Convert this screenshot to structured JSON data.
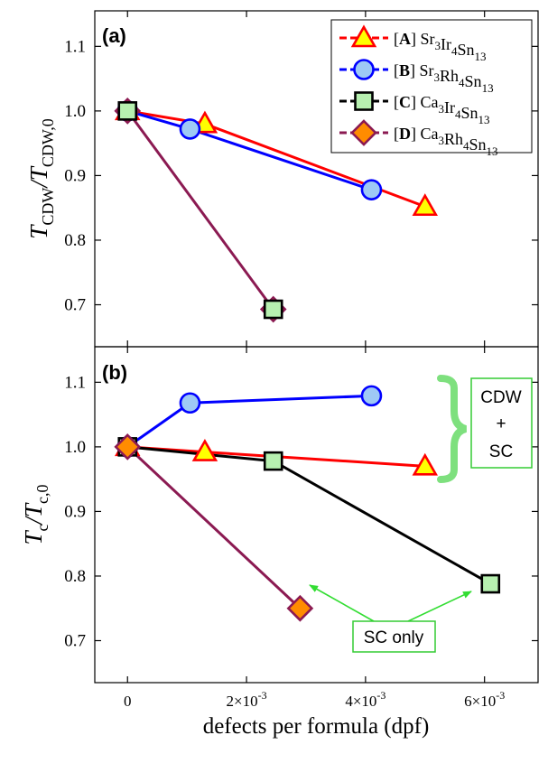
{
  "chart_data": [
    {
      "type": "line",
      "panel_label": "(a)",
      "ylabel": "T_CDW/T_CDW,0",
      "xlabel": "",
      "xlim": [
        -0.00055,
        0.0069
      ],
      "ylim": [
        0.635,
        1.155
      ],
      "yticks": [
        0.7,
        0.8,
        0.9,
        1.0,
        1.1
      ],
      "ytick_labels": [
        "0.7",
        "0.8",
        "0.9",
        "1.0",
        "1.1"
      ],
      "legend_position": "top-right",
      "series": [
        {
          "name": "[A] Sr3Ir4Sn13",
          "legend_label": "Sr3Ir4Sn13",
          "legend_key": "A",
          "marker": "triangle",
          "line_color": "#ff0000",
          "fill": "#ffff00",
          "edge": "#ff0000",
          "dashed_in_legend": true,
          "x": [
            0,
            0.0013,
            0.005
          ],
          "y": [
            1.0,
            0.98,
            0.852
          ]
        },
        {
          "name": "[B] Sr3Rh4Sn13",
          "legend_label": "Sr3Rh4Sn13",
          "legend_key": "B",
          "marker": "circle",
          "line_color": "#0000ff",
          "fill": "#9ec9f5",
          "edge": "#0000ff",
          "dashed_in_legend": true,
          "x": [
            0,
            0.00105,
            0.0041
          ],
          "y": [
            1.0,
            0.972,
            0.878
          ]
        },
        {
          "name": "[C] Ca3Ir4Sn13",
          "legend_label": "Ca3Ir4Sn13",
          "legend_key": "C",
          "marker": "square",
          "line_color": "#000000",
          "fill": "#b7f0b0",
          "edge": "#000000",
          "dashed_in_legend": true,
          "x": [
            0
          ],
          "y": [
            1.0
          ]
        },
        {
          "name": "[D] Ca3Rh4Sn13",
          "legend_label": "Ca3Rh4Sn13",
          "legend_key": "D",
          "marker": "diamond",
          "line_color": "#8b1a52",
          "fill": "#ff8c00",
          "edge": "#8b1a52",
          "dashed_in_legend": true,
          "x": [
            0,
            0.00245
          ],
          "y": [
            1.0,
            0.693
          ]
        }
      ],
      "extra_points": [
        {
          "marker": "square",
          "fill": "#b7f0b0",
          "edge": "#000000",
          "x": 0.00245,
          "y": 0.693
        }
      ]
    },
    {
      "type": "line",
      "panel_label": "(b)",
      "ylabel": "T_c/T_c,0",
      "xlabel": "defects per formula (dpf)",
      "xlim": [
        -0.00055,
        0.0069
      ],
      "ylim": [
        0.635,
        1.155
      ],
      "xticks": [
        0,
        0.002,
        0.004,
        0.006
      ],
      "xtick_labels": [
        "0",
        "2×10-3",
        "4×10-3",
        "6×10-3"
      ],
      "yticks": [
        0.7,
        0.8,
        0.9,
        1.0,
        1.1
      ],
      "ytick_labels": [
        "0.7",
        "0.8",
        "0.9",
        "1.0",
        "1.1"
      ],
      "series": [
        {
          "name": "[A] Sr3Ir4Sn13",
          "marker": "triangle",
          "line_color": "#ff0000",
          "fill": "#ffff00",
          "edge": "#ff0000",
          "x": [
            0,
            0.0013,
            0.005
          ],
          "y": [
            1.0,
            0.992,
            0.97
          ]
        },
        {
          "name": "[B] Sr3Rh4Sn13",
          "marker": "circle",
          "line_color": "#0000ff",
          "fill": "#9ec9f5",
          "edge": "#0000ff",
          "x": [
            0,
            0.00105,
            0.0041
          ],
          "y": [
            1.0,
            1.068,
            1.079
          ]
        },
        {
          "name": "[C] Ca3Ir4Sn13",
          "marker": "square",
          "line_color": "#000000",
          "fill": "#b7f0b0",
          "edge": "#000000",
          "x": [
            0,
            0.00245,
            0.0061
          ],
          "y": [
            1.0,
            0.978,
            0.788
          ]
        },
        {
          "name": "[D] Ca3Rh4Sn13",
          "marker": "diamond",
          "line_color": "#8b1a52",
          "fill": "#ff8c00",
          "edge": "#8b1a52",
          "x": [
            0,
            0.0029
          ],
          "y": [
            1.0,
            0.75
          ]
        }
      ],
      "annotations": [
        {
          "text_lines": [
            "CDW",
            "+",
            "SC"
          ],
          "type": "box-with-brace",
          "color": "#7ee07e"
        },
        {
          "text": "SC only",
          "type": "box-with-arrows",
          "color": "#33dd33"
        }
      ]
    }
  ],
  "colors": {
    "annotation_green": "#7ee07e",
    "arrow_green": "#33dd33"
  }
}
